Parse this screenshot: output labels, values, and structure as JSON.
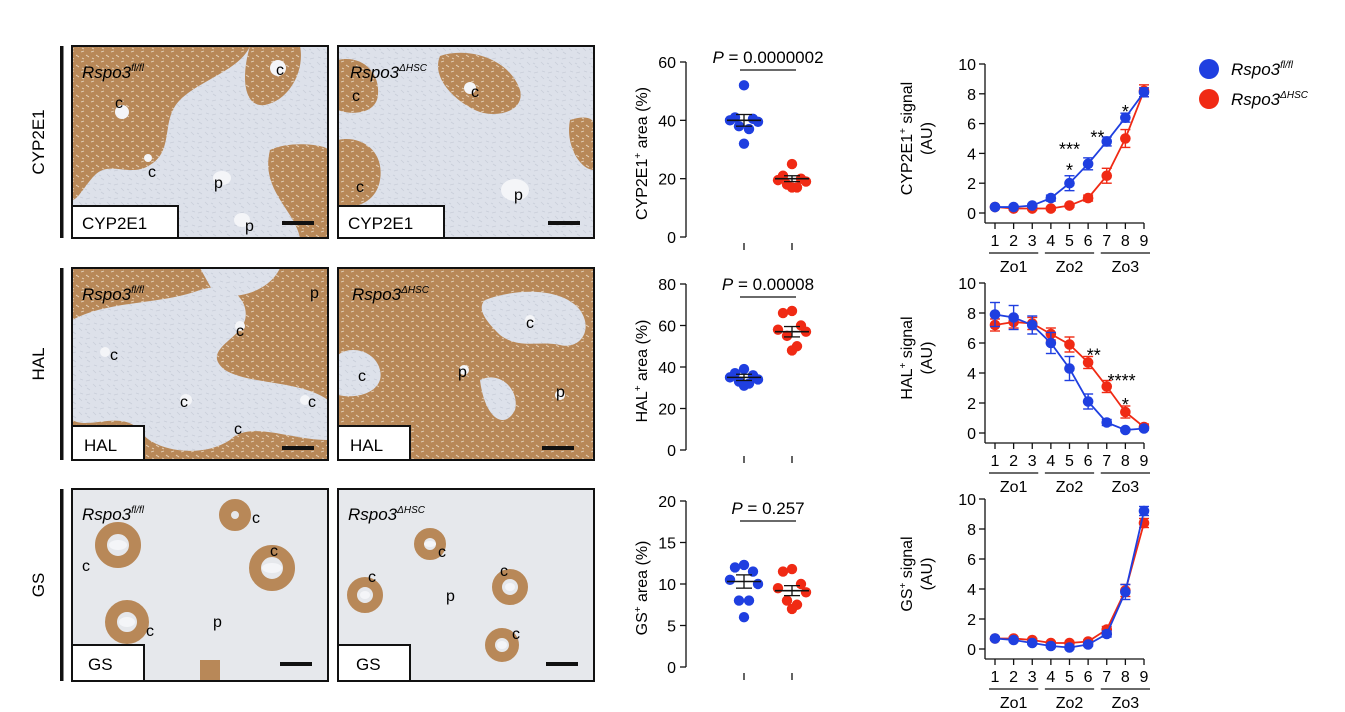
{
  "colors": {
    "fl": "#1f3fe0",
    "hsc": "#f02a14",
    "stain": "#b9895a",
    "tissue": "#dfe3ea",
    "axis": "#111111"
  },
  "legend": {
    "items": [
      {
        "base": "Rspo3",
        "sup": "fl/fl",
        "color": "#1f3fe0"
      },
      {
        "base": "Rspo3",
        "sup": "ΔHSC",
        "color": "#f02a14"
      }
    ]
  },
  "rows": [
    {
      "row_label": "CYP2E1",
      "left": {
        "genotype": "Rspo3",
        "sup": "fl/fl",
        "stain": "CYP2E1",
        "marks": [
          "c",
          "c",
          "c",
          "p",
          "p"
        ]
      },
      "right": {
        "genotype": "Rspo3",
        "sup": "ΔHSC",
        "stain": "CYP2E1",
        "marks": [
          "c",
          "c",
          "c",
          "p"
        ]
      }
    },
    {
      "row_label": "HAL",
      "left": {
        "genotype": "Rspo3",
        "sup": "fl/fl",
        "stain": "HAL",
        "marks": [
          "p",
          "c",
          "c",
          "c",
          "c",
          "c"
        ]
      },
      "right": {
        "genotype": "Rspo3",
        "sup": "ΔHSC",
        "stain": "HAL",
        "marks": [
          "c",
          "c",
          "p",
          "p"
        ]
      }
    },
    {
      "row_label": "GS",
      "left": {
        "genotype": "Rspo3",
        "sup": "fl/fl",
        "stain": "GS",
        "marks": [
          "c",
          "c",
          "c",
          "c",
          "p"
        ]
      },
      "right": {
        "genotype": "Rspo3",
        "sup": "ΔHSC",
        "stain": "GS",
        "marks": [
          "c",
          "c",
          "c",
          "c",
          "p"
        ]
      }
    }
  ],
  "chart_data": [
    {
      "type": "scatter",
      "ylabel_base": "CYP2E1",
      "ylabel_sup": "+",
      "ylabel_tail": " area (%)",
      "ylim": [
        0,
        60
      ],
      "yticks": [
        0,
        20,
        40,
        60
      ],
      "p_label": "P",
      "p_value": " = 0.0000002",
      "groups": [
        {
          "name": "Rspo3 fl/fl",
          "color": "#1f3fe0",
          "mean": 40,
          "sem": 2,
          "values": [
            52,
            41,
            40.5,
            40,
            39.5,
            38,
            37,
            32
          ]
        },
        {
          "name": "Rspo3 ΔHSC",
          "color": "#f02a14",
          "mean": 20,
          "sem": 1,
          "values": [
            25,
            21,
            20,
            19.5,
            19,
            18,
            17,
            17
          ]
        }
      ]
    },
    {
      "type": "scatter",
      "ylabel_base": "HAL",
      "ylabel_sup": "+",
      "ylabel_tail": " area (%)",
      "ylim": [
        0,
        80
      ],
      "yticks": [
        0,
        20,
        40,
        60,
        80
      ],
      "p_label": "P",
      "p_value": " = 0.00008",
      "groups": [
        {
          "name": "Rspo3 fl/fl",
          "color": "#1f3fe0",
          "mean": 35,
          "sem": 1.5,
          "values": [
            39,
            37,
            36,
            35,
            34,
            33,
            32,
            31
          ]
        },
        {
          "name": "Rspo3 ΔHSC",
          "color": "#f02a14",
          "mean": 57,
          "sem": 2.5,
          "values": [
            67,
            66,
            60,
            58,
            57,
            55,
            50,
            48
          ]
        }
      ]
    },
    {
      "type": "scatter",
      "ylabel_base": "GS",
      "ylabel_sup": "+",
      "ylabel_tail": " area (%)",
      "ylim": [
        0,
        20
      ],
      "yticks": [
        0,
        5,
        10,
        15,
        20
      ],
      "p_label": "P",
      "p_value": " = 0.257",
      "groups": [
        {
          "name": "Rspo3 fl/fl",
          "color": "#1f3fe0",
          "mean": 10.3,
          "sem": 0.8,
          "values": [
            12.3,
            12,
            11.5,
            10.5,
            10,
            8,
            8,
            6
          ]
        },
        {
          "name": "Rspo3 ΔHSC",
          "color": "#f02a14",
          "mean": 9.2,
          "sem": 0.6,
          "values": [
            11.8,
            11.5,
            10,
            9.5,
            9,
            8,
            7.5,
            7
          ]
        }
      ]
    },
    {
      "type": "line",
      "ylabel_base": "CYP2E1",
      "ylabel_sup": "+",
      "ylabel_tail": " signal",
      "ylabel_line2": "(AU)",
      "ylim": [
        0,
        10
      ],
      "yticks": [
        0,
        2,
        4,
        6,
        8,
        10
      ],
      "x": [
        1,
        2,
        3,
        4,
        5,
        6,
        7,
        8,
        9
      ],
      "zones": [
        "Zo1",
        "Zo2",
        "Zo3"
      ],
      "series": [
        {
          "name": "Rspo3 fl/fl",
          "color": "#1f3fe0",
          "values": [
            0.4,
            0.4,
            0.5,
            1.0,
            2.0,
            3.3,
            4.8,
            6.4,
            8.1
          ],
          "err": [
            0.1,
            0.1,
            0.1,
            0.2,
            0.5,
            0.4,
            0.3,
            0.3,
            0.3
          ]
        },
        {
          "name": "Rspo3 ΔHSC",
          "color": "#f02a14",
          "values": [
            0.4,
            0.3,
            0.3,
            0.3,
            0.5,
            1.0,
            2.5,
            5.0,
            8.2
          ],
          "err": [
            0.1,
            0.1,
            0.1,
            0.1,
            0.1,
            0.2,
            0.5,
            0.6,
            0.4
          ]
        }
      ],
      "annotations": [
        {
          "x": 5,
          "y": 3.0,
          "text": "*"
        },
        {
          "x": 5,
          "y": 4.4,
          "text": "***"
        },
        {
          "x": 6.5,
          "y": 5.2,
          "text": "**"
        },
        {
          "x": 8,
          "y": 6.9,
          "text": "*"
        }
      ]
    },
    {
      "type": "line",
      "ylabel_base": "HAL",
      "ylabel_sup": "+",
      "ylabel_tail": " signal",
      "ylabel_line2": "(AU)",
      "ylim": [
        0,
        10
      ],
      "yticks": [
        0,
        2,
        4,
        6,
        8,
        10
      ],
      "x": [
        1,
        2,
        3,
        4,
        5,
        6,
        7,
        8,
        9
      ],
      "zones": [
        "Zo1",
        "Zo2",
        "Zo3"
      ],
      "series": [
        {
          "name": "Rspo3 fl/fl",
          "color": "#1f3fe0",
          "values": [
            7.9,
            7.7,
            7.2,
            6.0,
            4.3,
            2.1,
            0.7,
            0.2,
            0.3
          ],
          "err": [
            0.8,
            0.8,
            0.6,
            0.7,
            0.8,
            0.5,
            0.2,
            0.1,
            0.1
          ]
        },
        {
          "name": "Rspo3 ΔHSC",
          "color": "#f02a14",
          "values": [
            7.2,
            7.4,
            7.3,
            6.6,
            5.9,
            4.7,
            3.1,
            1.4,
            0.4
          ],
          "err": [
            0.4,
            0.4,
            0.4,
            0.4,
            0.5,
            0.4,
            0.4,
            0.4,
            0.2
          ]
        }
      ],
      "annotations": [
        {
          "x": 6.3,
          "y": 5.3,
          "text": "**"
        },
        {
          "x": 7.8,
          "y": 3.6,
          "text": "****"
        },
        {
          "x": 8,
          "y": 2.0,
          "text": "*"
        }
      ]
    },
    {
      "type": "line",
      "ylabel_base": "GS",
      "ylabel_sup": "+",
      "ylabel_tail": " signal",
      "ylabel_line2": "(AU)",
      "ylim": [
        0,
        10
      ],
      "yticks": [
        0,
        2,
        4,
        6,
        8,
        10
      ],
      "x": [
        1,
        2,
        3,
        4,
        5,
        6,
        7,
        8,
        9
      ],
      "zones": [
        "Zo1",
        "Zo2",
        "Zo3"
      ],
      "series": [
        {
          "name": "Rspo3 fl/fl",
          "color": "#1f3fe0",
          "values": [
            0.7,
            0.6,
            0.4,
            0.2,
            0.1,
            0.3,
            1.0,
            3.8,
            9.2
          ],
          "err": [
            0.1,
            0.1,
            0.1,
            0.1,
            0.1,
            0.1,
            0.2,
            0.5,
            0.3
          ]
        },
        {
          "name": "Rspo3 ΔHSC",
          "color": "#f02a14",
          "values": [
            0.7,
            0.7,
            0.6,
            0.4,
            0.4,
            0.5,
            1.3,
            3.9,
            8.4
          ],
          "err": [
            0.1,
            0.1,
            0.1,
            0.1,
            0.1,
            0.1,
            0.2,
            0.4,
            0.3
          ]
        }
      ],
      "annotations": []
    }
  ]
}
